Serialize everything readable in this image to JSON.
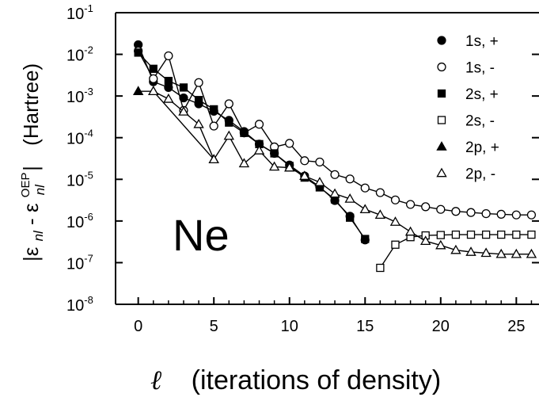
{
  "chart_data": {
    "type": "line",
    "title": "",
    "annotation": "Ne",
    "xlabel": {
      "symbol": "ℓ",
      "text": "(iterations of density)"
    },
    "ylabel": {
      "prefix": "|ε",
      "sub1": "nl",
      "mid": " - ε",
      "sup": "OEP",
      "sub2": "nl",
      "suffix": "|",
      "unit": "(Hartree)"
    },
    "xlim": [
      -1.5,
      26.5
    ],
    "ylim": [
      1e-08,
      0.1
    ],
    "yscale": "log",
    "xticks": [
      "0",
      "5",
      "10",
      "15",
      "20",
      "25"
    ],
    "yticks": [
      {
        "base": "10",
        "exp": "-8"
      },
      {
        "base": "10",
        "exp": "-7"
      },
      {
        "base": "10",
        "exp": "-6"
      },
      {
        "base": "10",
        "exp": "-5"
      },
      {
        "base": "10",
        "exp": "-4"
      },
      {
        "base": "10",
        "exp": "-3"
      },
      {
        "base": "10",
        "exp": "-2"
      },
      {
        "base": "10",
        "exp": "-1"
      }
    ],
    "legend_position": "top-right",
    "series": [
      {
        "name": "1s, +",
        "marker": "circle",
        "filled": true,
        "x": [
          0,
          1,
          2,
          3,
          4,
          5,
          6,
          7,
          8,
          9,
          10,
          11,
          12,
          13,
          14,
          15
        ],
        "y": [
          0.017,
          0.0022,
          0.0016,
          0.0009,
          0.00065,
          0.00043,
          0.00026,
          0.00014,
          7e-05,
          4.2e-05,
          2.2e-05,
          1.2e-05,
          6.6e-06,
          3.1e-06,
          1.3e-06,
          3.5e-07
        ]
      },
      {
        "name": "1s, -",
        "marker": "circle",
        "filled": false,
        "x": [
          0,
          1,
          2,
          3,
          4,
          5,
          6,
          7,
          8,
          9,
          10,
          11,
          12,
          13,
          14,
          15,
          16,
          17,
          18,
          19,
          20,
          21,
          22,
          23,
          24,
          25,
          26
        ],
        "y": [
          0.012,
          0.0026,
          0.0092,
          0.00045,
          0.0021,
          0.00019,
          0.00065,
          0.00013,
          0.00021,
          6e-05,
          7.3e-05,
          2.8e-05,
          2.6e-05,
          1.3e-05,
          1.02e-05,
          6.2e-06,
          4.8e-06,
          3.2e-06,
          2.5e-06,
          2.2e-06,
          1.9e-06,
          1.7e-06,
          1.6e-06,
          1.5e-06,
          1.45e-06,
          1.4e-06,
          1.4e-06
        ]
      },
      {
        "name": "2s, +",
        "marker": "square",
        "filled": true,
        "x": [
          0,
          1,
          2,
          3,
          4,
          5,
          6,
          7,
          8,
          9,
          10,
          11,
          12,
          13,
          14,
          15
        ],
        "y": [
          0.011,
          0.0045,
          0.0023,
          0.0016,
          0.0008,
          0.00048,
          0.00023,
          0.00013,
          7e-05,
          4.2e-05,
          2.1e-05,
          1.1e-05,
          6.4e-06,
          3.3e-06,
          1.2e-06,
          3.7e-07
        ]
      },
      {
        "name": "2s, -",
        "marker": "square",
        "filled": false,
        "x": [
          16,
          17,
          18,
          19,
          20,
          21,
          22,
          23,
          24,
          25,
          26
        ],
        "y": [
          7.5e-08,
          2.7e-07,
          4.1e-07,
          4.5e-07,
          4.6e-07,
          4.7e-07,
          4.7e-07,
          4.7e-07,
          4.7e-07,
          4.7e-07,
          4.7e-07
        ]
      },
      {
        "name": "2p, +",
        "marker": "triangle",
        "filled": true,
        "x": [
          0,
          1,
          5
        ],
        "y": [
          0.0013,
          0.0013,
          3e-05
        ]
      },
      {
        "name": "2p, -",
        "marker": "triangle",
        "filled": false,
        "x": [
          1,
          2,
          3,
          4,
          5,
          6,
          7,
          8,
          9,
          10,
          11,
          12,
          13,
          14,
          15,
          16,
          17,
          18,
          19,
          20,
          21,
          22,
          23,
          24,
          25,
          26
        ],
        "y": [
          0.0013,
          0.00085,
          0.00042,
          0.00021,
          3e-05,
          0.00011,
          2.4e-05,
          4.9e-05,
          2e-05,
          1.9e-05,
          1.2e-05,
          8.5e-06,
          4.5e-06,
          3.4e-06,
          1.9e-06,
          1.4e-06,
          9.5e-07,
          5.5e-07,
          3.3e-07,
          2.6e-07,
          2e-07,
          1.8e-07,
          1.7e-07,
          1.6e-07,
          1.6e-07,
          1.6e-07
        ]
      }
    ]
  }
}
